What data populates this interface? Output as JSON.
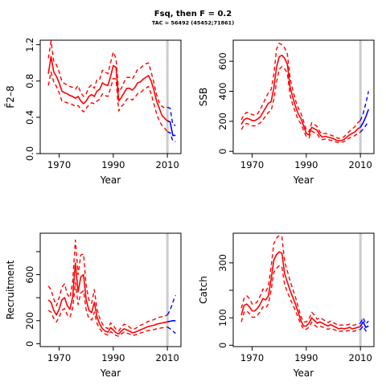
{
  "figure": {
    "title": "Fsq, then F = 0.2",
    "subtitle": "TAC = 56492 (45452;71861)"
  },
  "colors": {
    "historic": "#ff0000",
    "projection": "#0000ff",
    "reference_line": "#cccccc"
  },
  "chart_data": [
    {
      "type": "line",
      "ylabel": "F̄2–8",
      "xlabel": "Year",
      "xlim": [
        1963,
        2015
      ],
      "ylim": [
        0,
        1.25
      ],
      "xticks": [
        1970,
        1990,
        2010
      ],
      "yticks": [
        0.0,
        0.4,
        0.8,
        1.2
      ],
      "ytick_labels": [
        "0.0",
        "0.4",
        "0.8",
        "1.2"
      ],
      "reference_year": 2010,
      "historic": {
        "x": [
          1966,
          1967,
          1968,
          1969,
          1970,
          1971,
          1972,
          1973,
          1974,
          1975,
          1976,
          1977,
          1978,
          1979,
          1980,
          1981,
          1982,
          1983,
          1984,
          1985,
          1986,
          1987,
          1988,
          1989,
          1990,
          1991,
          1992,
          1993,
          1994,
          1995,
          1996,
          1997,
          1998,
          1999,
          2000,
          2001,
          2002,
          2003,
          2004,
          2005,
          2006,
          2007,
          2008,
          2009,
          2010
        ],
        "est": [
          0.88,
          1.07,
          0.9,
          0.85,
          0.78,
          0.69,
          0.67,
          0.66,
          0.64,
          0.63,
          0.61,
          0.63,
          0.58,
          0.55,
          0.58,
          0.63,
          0.65,
          0.63,
          0.69,
          0.71,
          0.78,
          0.76,
          0.75,
          0.85,
          0.97,
          0.95,
          0.58,
          0.62,
          0.67,
          0.72,
          0.72,
          0.7,
          0.73,
          0.78,
          0.79,
          0.82,
          0.84,
          0.86,
          0.8,
          0.7,
          0.58,
          0.5,
          0.42,
          0.39,
          0.36
        ],
        "upper": [
          1.05,
          1.24,
          1.02,
          0.98,
          0.9,
          0.8,
          0.77,
          0.76,
          0.74,
          0.73,
          0.71,
          0.75,
          0.67,
          0.63,
          0.66,
          0.73,
          0.76,
          0.72,
          0.82,
          0.82,
          0.92,
          0.9,
          0.88,
          1.0,
          1.12,
          1.05,
          0.68,
          0.72,
          0.79,
          0.84,
          0.84,
          0.82,
          0.87,
          0.93,
          0.94,
          0.97,
          0.99,
          1.0,
          0.9,
          0.78,
          0.65,
          0.56,
          0.52,
          0.5,
          0.51
        ],
        "lower": [
          0.75,
          0.9,
          0.79,
          0.74,
          0.67,
          0.58,
          0.57,
          0.56,
          0.55,
          0.54,
          0.52,
          0.53,
          0.49,
          0.46,
          0.5,
          0.54,
          0.56,
          0.55,
          0.58,
          0.6,
          0.66,
          0.64,
          0.63,
          0.72,
          0.83,
          0.82,
          0.47,
          0.52,
          0.55,
          0.6,
          0.61,
          0.59,
          0.62,
          0.66,
          0.67,
          0.7,
          0.72,
          0.74,
          0.66,
          0.55,
          0.44,
          0.36,
          0.31,
          0.28,
          0.24
        ]
      },
      "projection": {
        "x": [
          2010,
          2011,
          2012,
          2013
        ],
        "est": [
          0.36,
          0.35,
          0.2,
          0.2
        ],
        "upper": [
          0.51,
          0.5,
          0.32,
          0.31
        ],
        "lower": [
          0.24,
          0.23,
          0.14,
          0.13
        ]
      }
    },
    {
      "type": "line",
      "ylabel": "SSB",
      "xlabel": "Year",
      "xlim": [
        1963,
        2015
      ],
      "ylim": [
        -15,
        740
      ],
      "xticks": [
        1970,
        1990,
        2010
      ],
      "yticks": [
        0,
        200,
        400,
        600
      ],
      "ytick_labels": [
        "0",
        "200",
        "400",
        "600"
      ],
      "reference_year": 2010,
      "historic": {
        "x": [
          1966,
          1967,
          1968,
          1969,
          1970,
          1971,
          1972,
          1973,
          1974,
          1975,
          1976,
          1977,
          1978,
          1979,
          1980,
          1981,
          1982,
          1983,
          1984,
          1985,
          1986,
          1987,
          1988,
          1989,
          1990,
          1991,
          1992,
          1993,
          1994,
          1995,
          1996,
          1997,
          1998,
          1999,
          2000,
          2001,
          2002,
          2003,
          2004,
          2005,
          2006,
          2007,
          2008,
          2009,
          2010
        ],
        "est": [
          180,
          210,
          220,
          215,
          205,
          205,
          215,
          230,
          260,
          290,
          320,
          330,
          420,
          560,
          630,
          640,
          620,
          580,
          430,
          360,
          300,
          250,
          220,
          170,
          120,
          110,
          160,
          150,
          140,
          110,
          95,
          100,
          95,
          90,
          85,
          75,
          70,
          72,
          80,
          95,
          110,
          120,
          130,
          150,
          160
        ],
        "upper": [
          210,
          245,
          260,
          255,
          245,
          240,
          250,
          280,
          315,
          355,
          390,
          410,
          510,
          680,
          720,
          710,
          690,
          650,
          490,
          410,
          340,
          290,
          255,
          200,
          145,
          130,
          190,
          180,
          165,
          130,
          115,
          120,
          115,
          108,
          102,
          92,
          86,
          88,
          98,
          115,
          135,
          150,
          165,
          190,
          205
        ],
        "lower": [
          145,
          175,
          185,
          180,
          170,
          170,
          180,
          190,
          210,
          235,
          260,
          270,
          345,
          460,
          545,
          565,
          550,
          520,
          375,
          310,
          260,
          210,
          185,
          140,
          100,
          90,
          135,
          125,
          115,
          90,
          78,
          82,
          78,
          74,
          70,
          62,
          58,
          60,
          66,
          78,
          90,
          98,
          105,
          120,
          128
        ]
      },
      "projection": {
        "x": [
          2010,
          2011,
          2012,
          2013
        ],
        "est": [
          160,
          190,
          230,
          280
        ],
        "upper": [
          205,
          250,
          320,
          400
        ],
        "lower": [
          128,
          148,
          172,
          200
        ]
      }
    },
    {
      "type": "line",
      "ylabel": "Recruitment",
      "xlabel": "Year",
      "xlim": [
        1963,
        2015
      ],
      "ylim": [
        -25,
        960
      ],
      "xticks": [
        1970,
        1990,
        2010
      ],
      "yticks": [
        0,
        200,
        400,
        600,
        800
      ],
      "ytick_labels": [
        "0",
        "200",
        "",
        "600",
        ""
      ],
      "reference_year": 2010,
      "historic": {
        "x": [
          1966,
          1967,
          1968,
          1969,
          1970,
          1971,
          1972,
          1973,
          1974,
          1975,
          1976,
          1977,
          1978,
          1979,
          1980,
          1981,
          1982,
          1983,
          1984,
          1985,
          1986,
          1987,
          1988,
          1989,
          1990,
          1991,
          1992,
          1993,
          1994,
          1995,
          1996,
          1997,
          1998,
          1999,
          2000,
          2001,
          2002,
          2003,
          2004,
          2005,
          2006,
          2007,
          2008,
          2009,
          2010
        ],
        "est": [
          380,
          360,
          290,
          250,
          300,
          380,
          400,
          330,
          300,
          410,
          700,
          450,
          580,
          600,
          380,
          290,
          270,
          360,
          230,
          170,
          130,
          110,
          100,
          140,
          120,
          95,
          85,
          110,
          130,
          120,
          110,
          95,
          100,
          110,
          120,
          130,
          140,
          150,
          155,
          160,
          170,
          175,
          180,
          185,
          190
        ],
        "upper": [
          500,
          470,
          390,
          330,
          400,
          490,
          520,
          430,
          400,
          540,
          900,
          600,
          770,
          780,
          500,
          380,
          350,
          470,
          300,
          220,
          170,
          145,
          130,
          180,
          160,
          125,
          110,
          145,
          170,
          160,
          145,
          125,
          130,
          145,
          160,
          170,
          180,
          195,
          200,
          210,
          220,
          230,
          235,
          240,
          250
        ],
        "lower": [
          290,
          275,
          220,
          190,
          230,
          290,
          305,
          250,
          230,
          310,
          530,
          340,
          440,
          460,
          290,
          220,
          205,
          275,
          175,
          130,
          100,
          85,
          75,
          105,
          90,
          72,
          65,
          85,
          100,
          92,
          85,
          72,
          76,
          84,
          92,
          100,
          108,
          115,
          118,
          122,
          130,
          134,
          138,
          142,
          145
        ]
      },
      "projection": {
        "x": [
          2010,
          2011,
          2012,
          2013
        ],
        "est": [
          190,
          195,
          200,
          200
        ],
        "upper": [
          250,
          290,
          360,
          420
        ],
        "lower": [
          145,
          130,
          110,
          90
        ]
      }
    },
    {
      "type": "line",
      "ylabel": "Catch",
      "xlabel": "Year",
      "xlim": [
        1963,
        2015
      ],
      "ylim": [
        -5,
        408
      ],
      "xticks": [
        1970,
        1990,
        2010
      ],
      "yticks": [
        0,
        100,
        200,
        300
      ],
      "ytick_labels": [
        "0",
        "100",
        "",
        "300"
      ],
      "reference_year": 2010,
      "historic": {
        "x": [
          1966,
          1967,
          1968,
          1969,
          1970,
          1971,
          1972,
          1973,
          1974,
          1975,
          1976,
          1977,
          1978,
          1979,
          1980,
          1981,
          1982,
          1983,
          1984,
          1985,
          1986,
          1987,
          1988,
          1989,
          1990,
          1991,
          1992,
          1993,
          1994,
          1995,
          1996,
          1997,
          1998,
          1999,
          2000,
          2001,
          2002,
          2003,
          2004,
          2005,
          2006,
          2007,
          2008,
          2009,
          2010
        ],
        "est": [
          110,
          145,
          150,
          140,
          125,
          125,
          135,
          150,
          170,
          165,
          180,
          240,
          310,
          330,
          340,
          335,
          260,
          230,
          200,
          175,
          150,
          120,
          90,
          70,
          70,
          80,
          100,
          90,
          80,
          85,
          80,
          75,
          70,
          75,
          70,
          65,
          60,
          62,
          60,
          62,
          65,
          60,
          62,
          65,
          68
        ],
        "upper": [
          135,
          170,
          180,
          170,
          150,
          150,
          160,
          180,
          205,
          195,
          215,
          285,
          370,
          390,
          400,
          395,
          305,
          270,
          235,
          205,
          175,
          140,
          105,
          85,
          85,
          95,
          120,
          110,
          95,
          100,
          95,
          88,
          83,
          88,
          82,
          77,
          72,
          74,
          72,
          74,
          77,
          72,
          74,
          78,
          80
        ],
        "lower": [
          85,
          120,
          125,
          115,
          102,
          102,
          110,
          122,
          140,
          136,
          150,
          200,
          265,
          280,
          290,
          285,
          220,
          195,
          170,
          148,
          126,
          100,
          76,
          58,
          58,
          66,
          84,
          74,
          66,
          70,
          66,
          62,
          58,
          62,
          58,
          54,
          50,
          52,
          50,
          52,
          54,
          50,
          52,
          55,
          57
        ]
      },
      "projection": {
        "x": [
          2010,
          2011,
          2012,
          2013
        ],
        "est": [
          68,
          85,
          65,
          70
        ],
        "upper": [
          80,
          100,
          78,
          88
        ],
        "lower": [
          57,
          70,
          52,
          55
        ]
      }
    }
  ]
}
